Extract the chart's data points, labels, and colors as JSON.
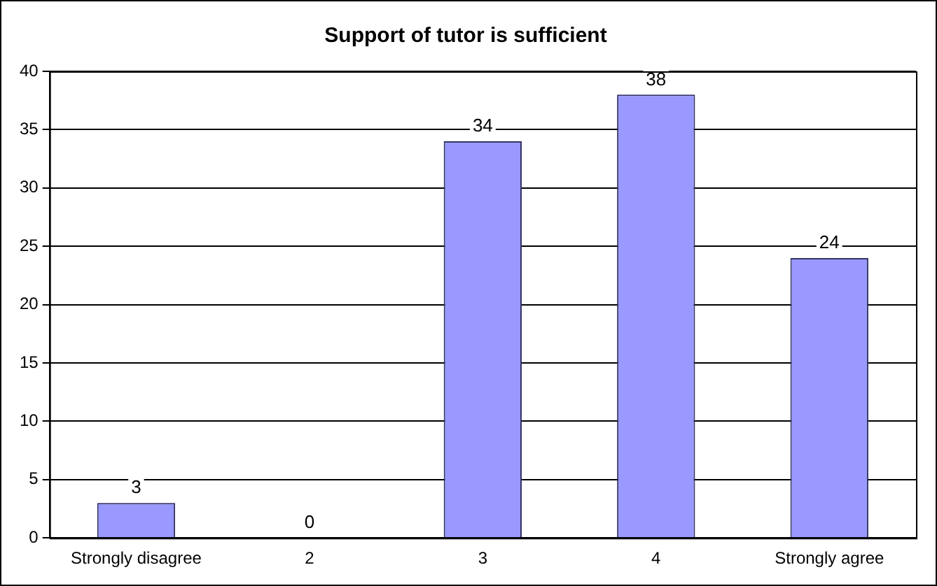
{
  "chart_data": {
    "type": "bar",
    "title": "Support of tutor is sufficient",
    "categories": [
      "Strongly disagree",
      "2",
      "3",
      "4",
      "Strongly agree"
    ],
    "values": [
      3,
      0,
      34,
      38,
      24
    ],
    "color": "#9999ff",
    "ylim": [
      0,
      40
    ],
    "yticks": [
      0,
      5,
      10,
      15,
      20,
      25,
      30,
      35,
      40
    ],
    "grid": "y",
    "data_labels": true,
    "legend": false
  }
}
